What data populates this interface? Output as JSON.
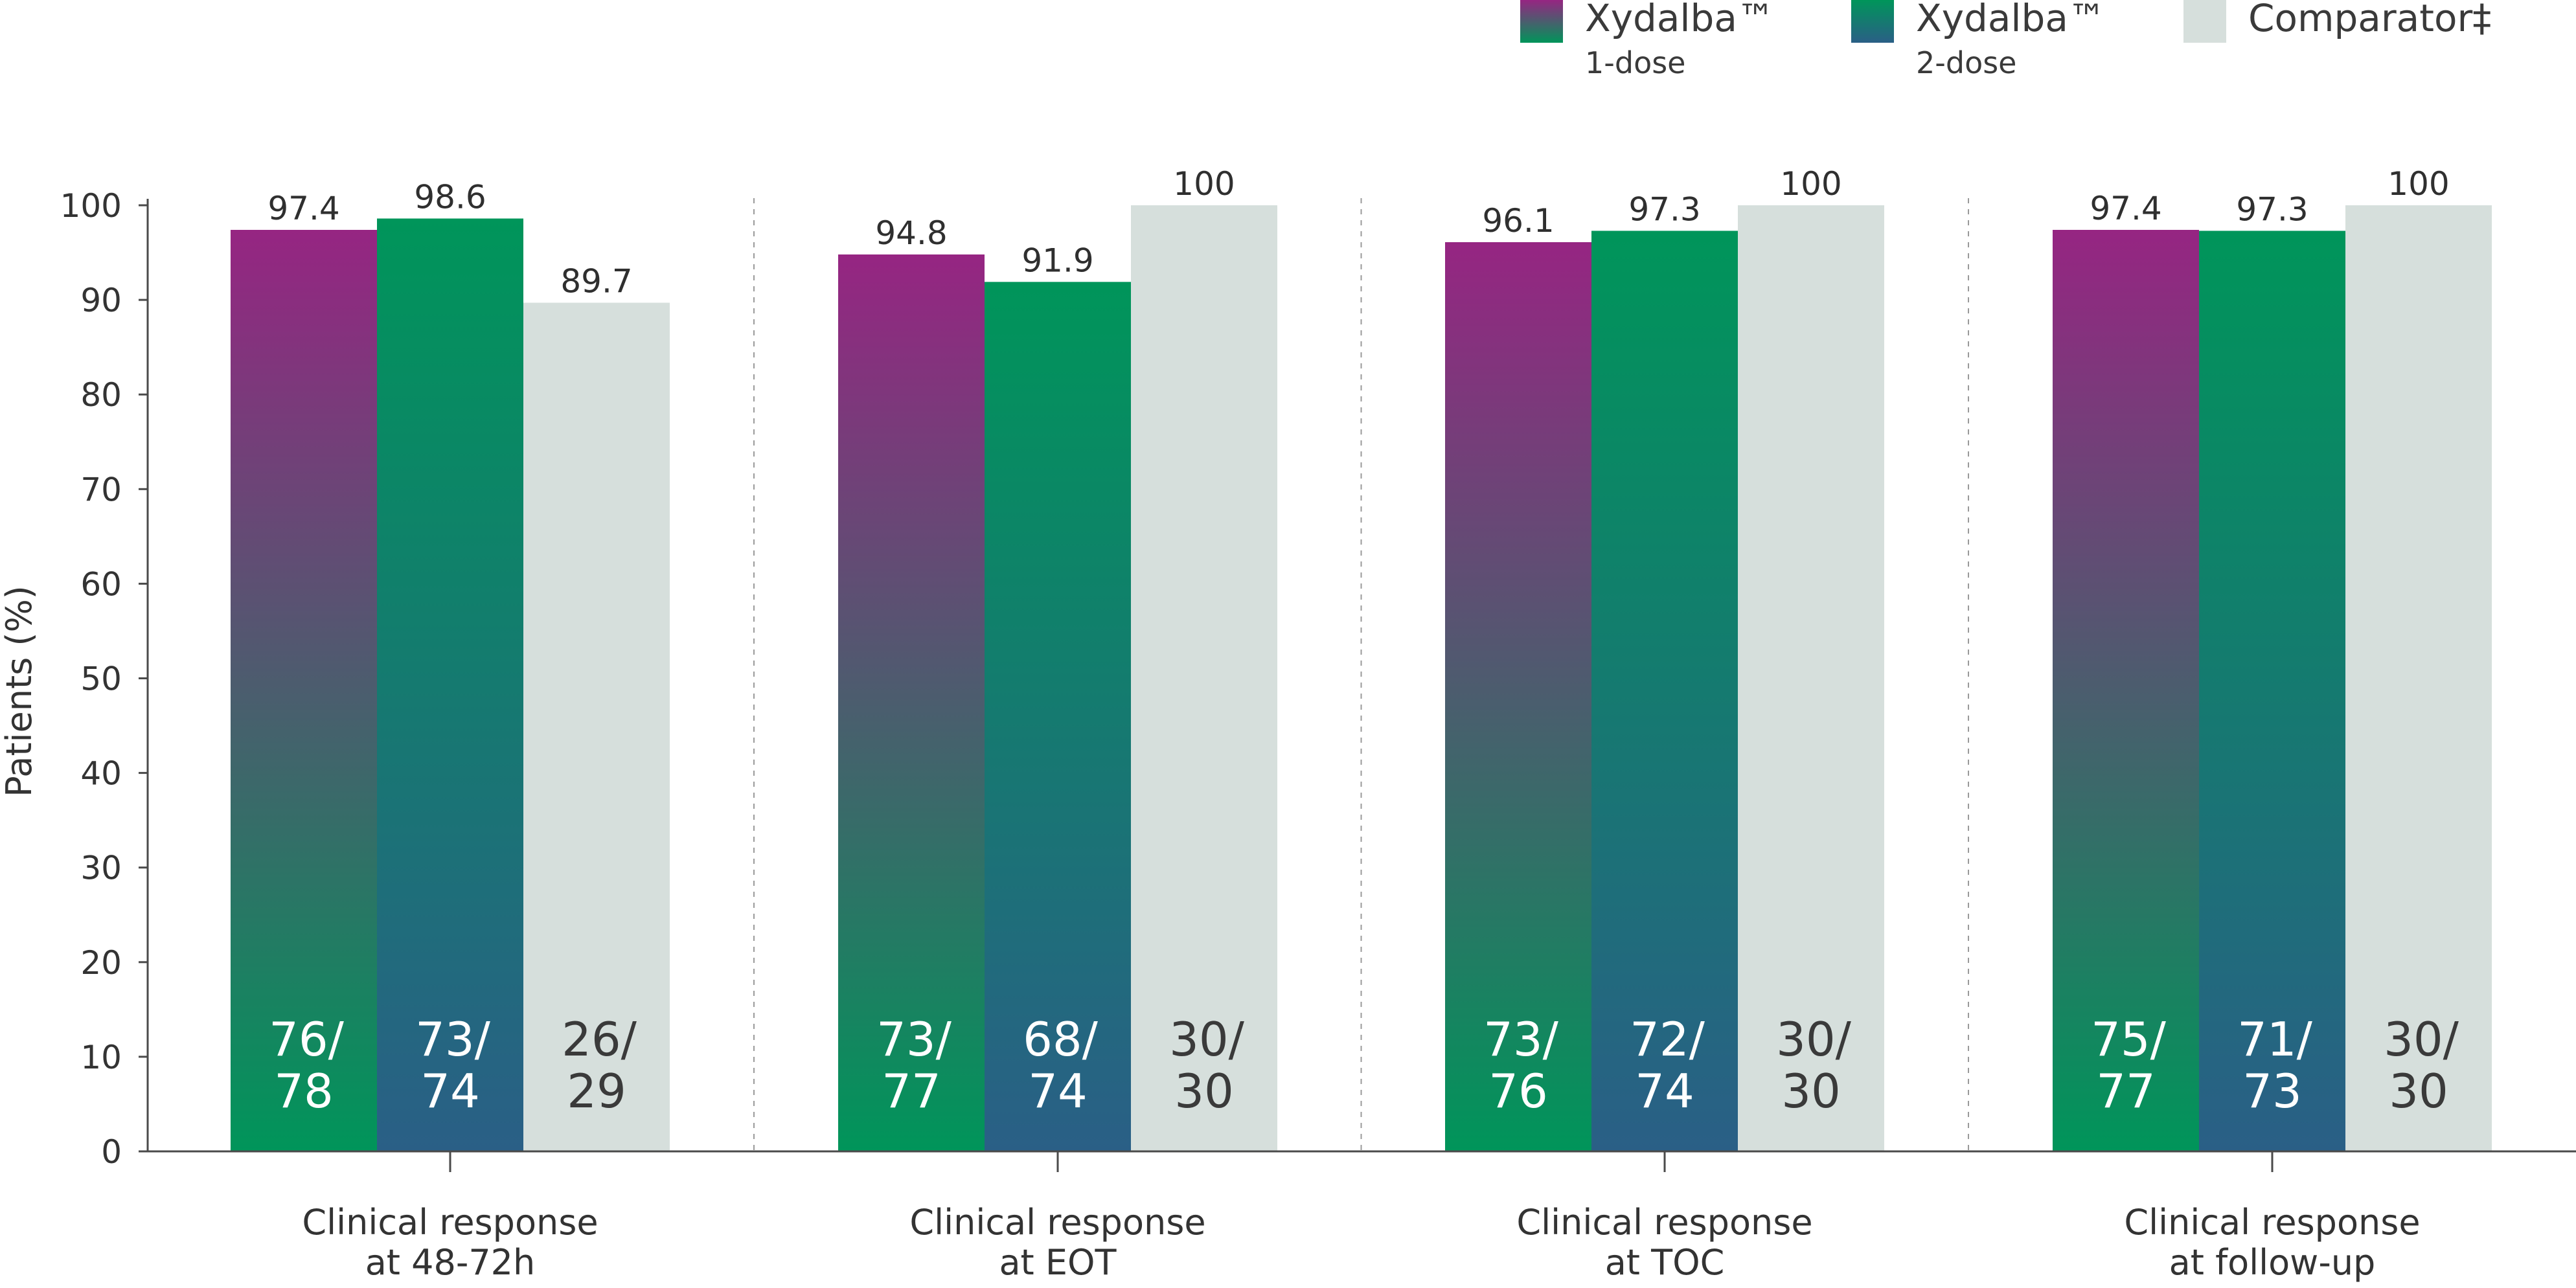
{
  "chart_data": {
    "type": "bar",
    "ylabel": "Patients (%)",
    "ylim": [
      0,
      100
    ],
    "yticks": [
      0,
      10,
      20,
      30,
      40,
      50,
      60,
      70,
      80,
      90,
      100
    ],
    "grid": false,
    "legend_position": "top-right",
    "categories": [
      [
        "Clinical response",
        "at 48-72h"
      ],
      [
        "Clinical response",
        "at EOT"
      ],
      [
        "Clinical response",
        "at TOC"
      ],
      [
        "Clinical response",
        "at follow-up"
      ]
    ],
    "series": [
      {
        "name": "Xydalba™",
        "subname": "1-dose",
        "colors": [
          "#962582",
          "#00955a"
        ],
        "values": [
          97.4,
          94.8,
          96.1,
          97.4
        ],
        "labels": [
          "97.4",
          "94.8",
          "96.1",
          "97.4"
        ],
        "fractions": [
          [
            "76/",
            "78"
          ],
          [
            "73/",
            "77"
          ],
          [
            "73/",
            "76"
          ],
          [
            "75/",
            "77"
          ]
        ],
        "fraction_color": "#ffffff"
      },
      {
        "name": "Xydalba™",
        "subname": "2-dose",
        "colors": [
          "#00955a",
          "#2a5f86"
        ],
        "values": [
          98.6,
          91.9,
          97.3,
          97.3
        ],
        "labels": [
          "98.6",
          "91.9",
          "97.3",
          "97.3"
        ],
        "fractions": [
          [
            "73/",
            "74"
          ],
          [
            "68/",
            "74"
          ],
          [
            "72/",
            "74"
          ],
          [
            "71/",
            "73"
          ]
        ],
        "fraction_color": "#ffffff"
      },
      {
        "name": "Comparator‡",
        "subname": "",
        "colors": [
          "#d6dfdc",
          "#d6dfdc"
        ],
        "values": [
          89.7,
          100,
          100,
          100
        ],
        "labels": [
          "89.7",
          "100",
          "100",
          "100"
        ],
        "fractions": [
          [
            "26/",
            "29"
          ],
          [
            "30/",
            "30"
          ],
          [
            "30/",
            "30"
          ],
          [
            "30/",
            "30"
          ]
        ],
        "fraction_color": "#3a3a3a"
      }
    ]
  }
}
